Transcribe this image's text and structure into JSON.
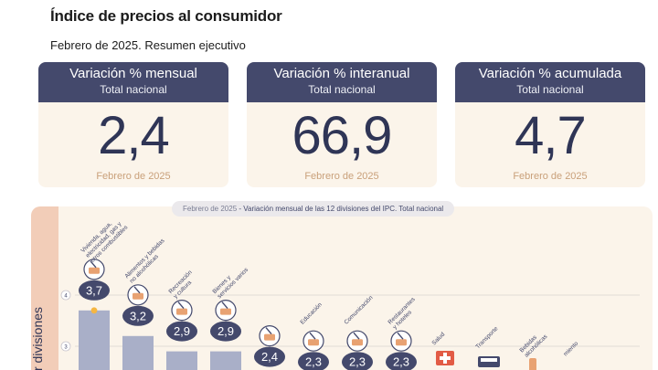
{
  "header": {
    "title": "Índice de precios al consumidor",
    "subtitle": "Febrero de 2025. Resumen ejecutivo"
  },
  "cards": [
    {
      "title": "Variación % mensual",
      "subtitle": "Total nacional",
      "value": "2,4",
      "period": "Febrero de 2025"
    },
    {
      "title": "Variación % interanual",
      "subtitle": "Total nacional",
      "value": "66,9",
      "period": "Febrero de 2025"
    },
    {
      "title": "Variación % acumulada",
      "subtitle": "Total nacional",
      "value": "4,7",
      "period": "Febrero de 2025"
    }
  ],
  "chart_title": {
    "prefix": "Febrero de 2025",
    "text": " - Variación mensual de las 12 divisiones del IPC. Total nacional"
  },
  "y_axis_title": "r divisiones",
  "colors": {
    "header_bg": "#44496c",
    "card_bg": "#fbf4ea",
    "value_text": "#2f3556",
    "period_text": "#c9a07a",
    "bar": "#a9afc8",
    "bar_highlight": "#f5b642",
    "side_band": "#f2cdb8"
  },
  "chart_data": {
    "type": "bar",
    "title": "Febrero de 2025 - Variación mensual de las 12 divisiones del IPC. Total nacional",
    "ylabel": "r divisiones",
    "yticks": [
      3,
      4
    ],
    "ylim": [
      0,
      4.8
    ],
    "grid": true,
    "categories": [
      "Vivienda, agua, electricidad, gas y otros combustibles",
      "Alimentos y bebidas no alcohólicas",
      "Recreación y cultura",
      "Bienes y servicios varios",
      "",
      "Educación",
      "Comunicación",
      "Restaurantes y hoteles",
      "Salud",
      "Transporte",
      "Bebidas alcohólicas",
      "miento"
    ],
    "values": [
      3.7,
      3.2,
      2.9,
      2.9,
      2.4,
      2.3,
      2.3,
      2.3,
      null,
      null,
      null,
      null
    ],
    "value_labels": [
      "3,7",
      "3,2",
      "2,9",
      "2,9",
      "2,4",
      "2,3",
      "2,3",
      "2,3",
      "",
      "",
      "",
      ""
    ],
    "icons": [
      "house-bulb-icon",
      "food-basket-icon",
      "leisure-icon",
      "misc-goods-icon",
      "clothing-icon",
      "education-icon",
      "phone-icon",
      "restaurant-icon",
      "health-cross-icon",
      "bus-icon",
      "bottle-icon",
      ""
    ]
  }
}
